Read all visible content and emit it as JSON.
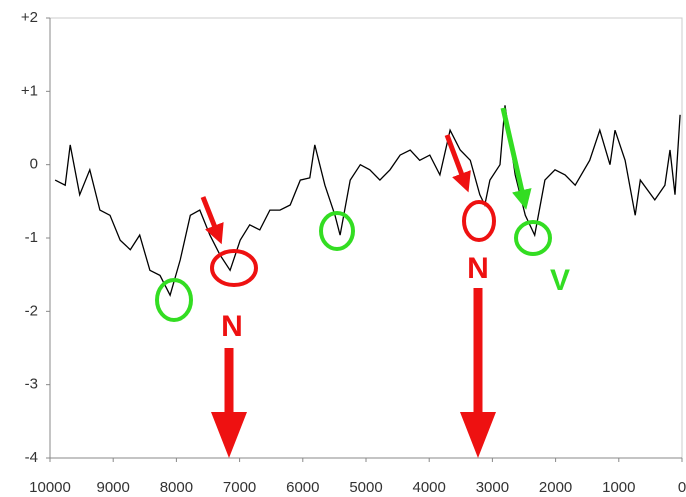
{
  "chart_data": {
    "type": "line",
    "x": [
      9920,
      9760,
      9680,
      9530,
      9370,
      9210,
      9050,
      8890,
      8730,
      8580,
      8420,
      8260,
      8100,
      7940,
      7780,
      7630,
      7470,
      7310,
      7150,
      6990,
      6840,
      6680,
      6520,
      6360,
      6200,
      6040,
      5890,
      5810,
      5650,
      5490,
      5410,
      5250,
      5090,
      4940,
      4780,
      4620,
      4460,
      4300,
      4150,
      3990,
      3830,
      3670,
      3510,
      3350,
      3200,
      3120,
      3040,
      2880,
      2800,
      2640,
      2480,
      2330,
      2170,
      2010,
      1850,
      1690,
      1460,
      1300,
      1140,
      1060,
      900,
      740,
      660,
      430,
      270,
      190,
      110,
      30
    ],
    "values": [
      -0.21,
      -0.28,
      0.27,
      -0.41,
      -0.07,
      -0.62,
      -0.69,
      -1.03,
      -1.16,
      -0.96,
      -1.44,
      -1.51,
      -1.78,
      -1.3,
      -0.69,
      -0.62,
      -0.96,
      -1.23,
      -1.44,
      -1.03,
      -0.82,
      -0.89,
      -0.62,
      -0.62,
      -0.55,
      -0.21,
      -0.18,
      0.27,
      -0.28,
      -0.69,
      -0.96,
      -0.21,
      0,
      -0.07,
      -0.21,
      -0.07,
      0.13,
      0.2,
      0.06,
      0.13,
      -0.14,
      0.47,
      0.2,
      0.06,
      -0.41,
      -0.55,
      -0.21,
      0,
      0.81,
      -0.14,
      -0.69,
      -0.96,
      -0.21,
      -0.07,
      -0.14,
      -0.28,
      0.06,
      0.47,
      0,
      0.47,
      0.06,
      -0.69,
      -0.21,
      -0.48,
      -0.28,
      0.2,
      -0.41,
      0.68
    ],
    "color": "#000000",
    "xlim": [
      10000,
      0
    ],
    "xticks": [
      10000,
      9000,
      8000,
      7000,
      6000,
      5000,
      4000,
      3000,
      2000,
      1000,
      0
    ],
    "ylim": [
      -4,
      2
    ],
    "yticks": [
      -4,
      -3,
      -2,
      -1,
      0,
      {
        "value": 1,
        "label": "+1"
      },
      {
        "value": 2,
        "label": "+2"
      }
    ],
    "annotations": [
      "N",
      "N",
      "V"
    ]
  }
}
